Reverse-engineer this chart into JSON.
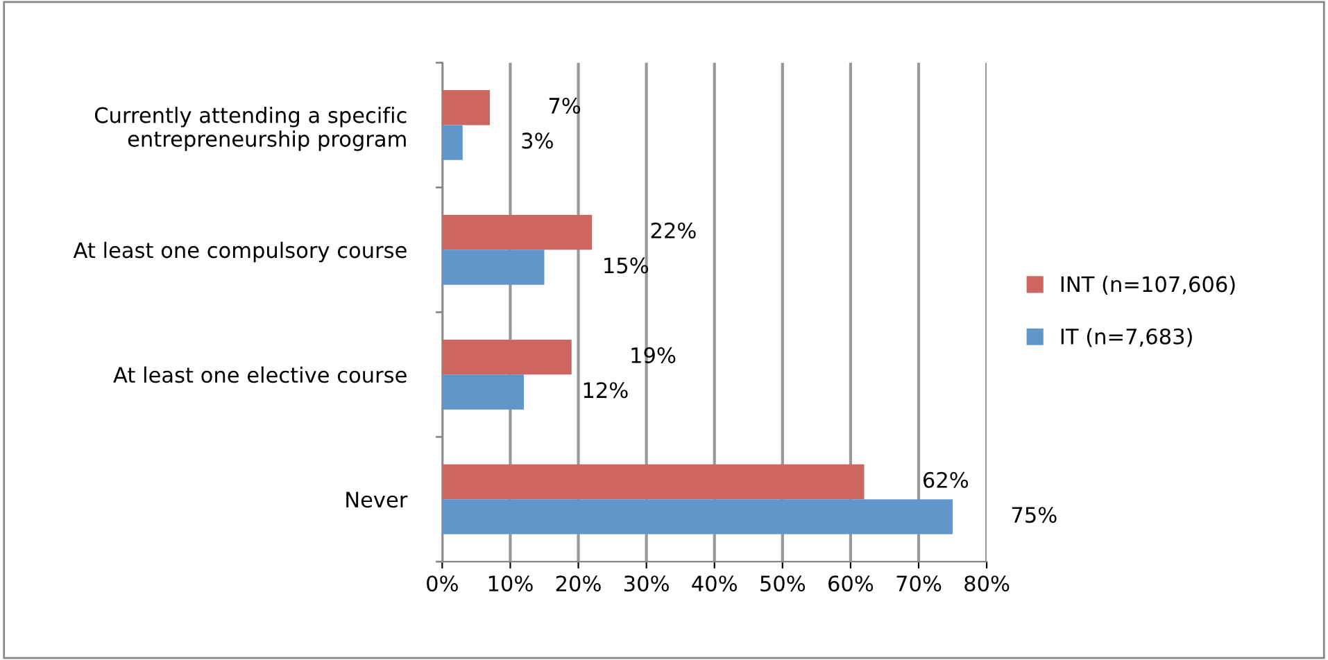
{
  "chart_data": {
    "type": "bar",
    "orientation": "horizontal",
    "categories": [
      "Currently attending a specific\nentrepreneurship program",
      "At least one compulsory course",
      "At least one elective course",
      "Never"
    ],
    "series": [
      {
        "name": "INT (n=107,606)",
        "color": "#cd6660",
        "values": [
          7,
          22,
          19,
          62
        ],
        "value_labels": [
          "7%",
          "22%",
          "19%",
          "62%"
        ]
      },
      {
        "name": "IT (n=7,683)",
        "color": "#6096c9",
        "values": [
          3,
          15,
          12,
          75
        ],
        "value_labels": [
          "3%",
          "15%",
          "12%",
          "75%"
        ]
      }
    ],
    "xlim": [
      0,
      80
    ],
    "xticks": [
      {
        "value": 0,
        "label": "0%"
      },
      {
        "value": 10,
        "label": "10%"
      },
      {
        "value": 20,
        "label": "20%"
      },
      {
        "value": 30,
        "label": "30%"
      },
      {
        "value": 40,
        "label": "40%"
      },
      {
        "value": 50,
        "label": "50%"
      },
      {
        "value": 60,
        "label": "60%"
      },
      {
        "value": 70,
        "label": "70%"
      },
      {
        "value": 80,
        "label": "80%"
      }
    ],
    "grid": "x",
    "legend": "right"
  }
}
